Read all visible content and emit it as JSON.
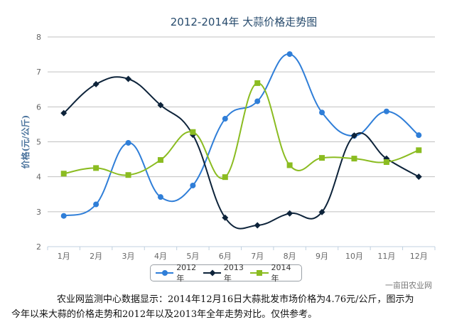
{
  "chart_data": {
    "type": "line",
    "title": "2012-2014年 大蒜价格走势图",
    "ylabel": "价格(元/公斤)",
    "xlabel": "",
    "categories": [
      "1月",
      "2月",
      "3月",
      "4月",
      "5月",
      "6月",
      "7月",
      "8月",
      "9月",
      "10月",
      "11月",
      "12月"
    ],
    "ylim": [
      2,
      8
    ],
    "yticks": [
      2,
      3,
      4,
      5,
      6,
      7,
      8
    ],
    "grid": true,
    "smooth": true,
    "legend_position": "bottom",
    "series": [
      {
        "name": "2012年",
        "color": "#2f7ed8",
        "marker": "circle",
        "values": [
          2.88,
          3.21,
          4.97,
          3.42,
          3.75,
          5.66,
          6.16,
          7.51,
          5.84,
          5.17,
          5.87,
          5.19
        ]
      },
      {
        "name": "2013年",
        "color": "#0d233a",
        "marker": "diamond",
        "values": [
          5.82,
          6.65,
          6.8,
          6.05,
          5.2,
          2.83,
          2.61,
          2.95,
          2.99,
          5.18,
          4.52,
          4.0
        ]
      },
      {
        "name": "2014年",
        "color": "#8bbc21",
        "marker": "square",
        "values": [
          4.09,
          4.25,
          4.05,
          4.48,
          5.28,
          3.99,
          6.68,
          4.33,
          4.54,
          4.52,
          4.42,
          4.76
        ]
      }
    ]
  },
  "watermark": "一亩田农业网",
  "caption": {
    "line1": "农业网监测中心数据显示：2014年12月16日大蒜批发市场价格为4.76元/公斤，图示为",
    "line2": "今年以来大蒜的价格走势和2012年以及2013年全年走势对比。仅供参考。"
  }
}
